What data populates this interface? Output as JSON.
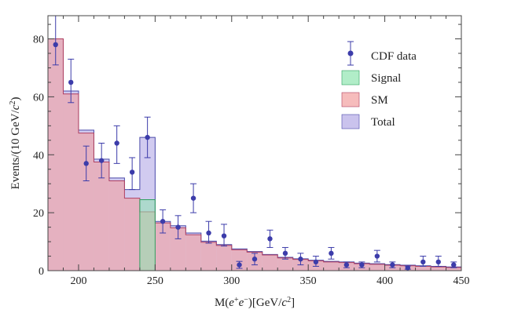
{
  "chart_data": {
    "type": "histogram",
    "xlabel_parts": [
      "M(",
      "e",
      "+",
      "e",
      "−",
      ")[GeV/",
      "c",
      "2",
      "]"
    ],
    "ylabel_parts": [
      "Events/(10 GeV/",
      "c",
      "2",
      ")"
    ],
    "xlim": [
      180,
      450
    ],
    "ylim": [
      0,
      88
    ],
    "x_ticks": [
      200,
      250,
      300,
      350,
      400,
      450
    ],
    "y_ticks": [
      0,
      20,
      40,
      60,
      80
    ],
    "grid": false,
    "legend_position": "top-right",
    "bin_edges": [
      180,
      190,
      200,
      210,
      220,
      230,
      240,
      250,
      260,
      270,
      280,
      290,
      300,
      310,
      320,
      330,
      340,
      350,
      360,
      370,
      380,
      390,
      400,
      410,
      420,
      430,
      440,
      450
    ],
    "histograms": [
      {
        "name": "Total",
        "color": "#b3a9e6",
        "stroke": "#4a4aaa",
        "values": [
          80,
          62,
          48.5,
          38.5,
          32,
          28,
          46,
          17,
          15.5,
          13,
          10.2,
          9,
          7.5,
          6.6,
          5.6,
          4.6,
          4.1,
          3.6,
          3.2,
          3,
          2.6,
          2.4,
          2.1,
          1.9,
          1.7,
          1.5,
          1.3
        ]
      },
      {
        "name": "SM",
        "color": "#f2a0a0",
        "stroke": "#b04060",
        "values": [
          80,
          61,
          47.5,
          37.5,
          31,
          25,
          20.3,
          16.5,
          14.8,
          12.4,
          9.8,
          8.7,
          7.2,
          6.4,
          5.4,
          4.4,
          3.9,
          3.4,
          3.0,
          2.8,
          2.4,
          2.2,
          1.9,
          1.7,
          1.5,
          1.3,
          1.1
        ]
      },
      {
        "name": "Signal",
        "color": "#90e6b0",
        "stroke": "#30a060",
        "values": [
          0,
          0,
          0,
          0,
          0,
          0,
          24.5,
          0,
          0,
          0,
          0,
          0,
          0,
          0,
          0,
          0,
          0,
          0,
          0,
          0,
          0,
          0,
          0,
          0,
          0,
          0,
          0
        ]
      }
    ],
    "series": [
      {
        "name": "CDF data",
        "color": "#3c3caa",
        "points": [
          {
            "x": 185,
            "y": 78,
            "lo": 71,
            "hi": 88
          },
          {
            "x": 195,
            "y": 65,
            "lo": 58,
            "hi": 73
          },
          {
            "x": 205,
            "y": 37,
            "lo": 31,
            "hi": 43
          },
          {
            "x": 215,
            "y": 38,
            "lo": 32,
            "hi": 44
          },
          {
            "x": 225,
            "y": 44,
            "lo": 37,
            "hi": 50
          },
          {
            "x": 235,
            "y": 34,
            "lo": 28,
            "hi": 39
          },
          {
            "x": 245,
            "y": 46,
            "lo": 39,
            "hi": 53
          },
          {
            "x": 255,
            "y": 17,
            "lo": 13,
            "hi": 21
          },
          {
            "x": 265,
            "y": 15,
            "lo": 11,
            "hi": 19
          },
          {
            "x": 275,
            "y": 25,
            "lo": 20,
            "hi": 30
          },
          {
            "x": 285,
            "y": 13,
            "lo": 9.5,
            "hi": 17
          },
          {
            "x": 295,
            "y": 12,
            "lo": 8.5,
            "hi": 16
          },
          {
            "x": 305,
            "y": 2,
            "lo": 0.8,
            "hi": 3.2
          },
          {
            "x": 315,
            "y": 4,
            "lo": 2,
            "hi": 6
          },
          {
            "x": 325,
            "y": 11,
            "lo": 8,
            "hi": 14
          },
          {
            "x": 335,
            "y": 6,
            "lo": 4,
            "hi": 8
          },
          {
            "x": 345,
            "y": 4,
            "lo": 2,
            "hi": 6
          },
          {
            "x": 355,
            "y": 3,
            "lo": 1.5,
            "hi": 5
          },
          {
            "x": 365,
            "y": 6,
            "lo": 4,
            "hi": 8
          },
          {
            "x": 375,
            "y": 2,
            "lo": 1,
            "hi": 3
          },
          {
            "x": 385,
            "y": 2,
            "lo": 1,
            "hi": 3
          },
          {
            "x": 395,
            "y": 5,
            "lo": 3,
            "hi": 7
          },
          {
            "x": 405,
            "y": 2,
            "lo": 1,
            "hi": 3
          },
          {
            "x": 415,
            "y": 1,
            "lo": 0.5,
            "hi": 1.6
          },
          {
            "x": 425,
            "y": 3,
            "lo": 1.5,
            "hi": 5
          },
          {
            "x": 435,
            "y": 3,
            "lo": 1.5,
            "hi": 5
          },
          {
            "x": 445,
            "y": 2,
            "lo": 1,
            "hi": 3
          }
        ]
      }
    ],
    "legend": [
      {
        "label": "CDF data",
        "kind": "point",
        "color": "#3c3caa"
      },
      {
        "label": "Signal",
        "kind": "box",
        "fill": "#90e6b0",
        "stroke": "#30a060"
      },
      {
        "label": "SM",
        "kind": "box",
        "fill": "#f2a0a0",
        "stroke": "#b04060"
      },
      {
        "label": "Total",
        "kind": "box",
        "fill": "#b3a9e6",
        "stroke": "#4a4aaa"
      }
    ]
  }
}
